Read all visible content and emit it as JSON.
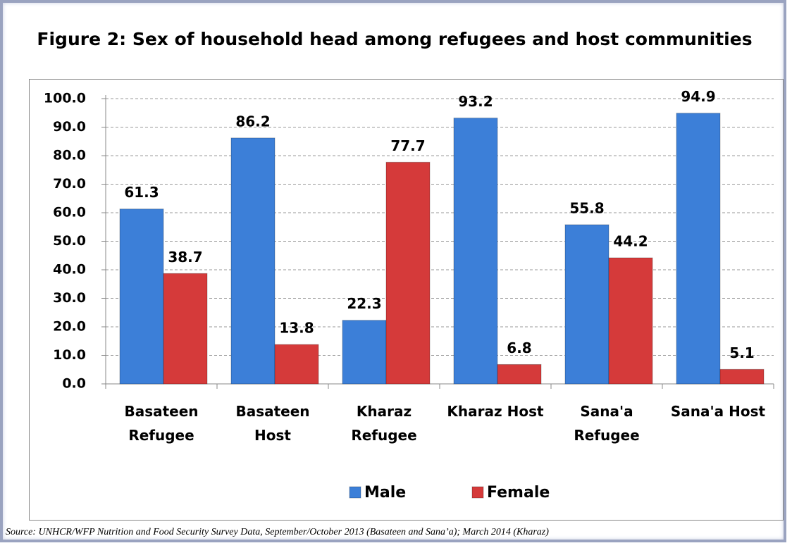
{
  "chart_data": {
    "type": "bar",
    "title": "Figure 2: Sex of household head among refugees and host communities",
    "categories": [
      "Basateen Refugee",
      "Basateen Host",
      "Kharaz Refugee",
      "Kharaz Host",
      "Sana'a Refugee",
      "Sana'a Host"
    ],
    "series": [
      {
        "name": "Male",
        "color": "#3c7fd8",
        "values": [
          61.3,
          86.2,
          22.3,
          93.2,
          55.8,
          94.9
        ]
      },
      {
        "name": "Female",
        "color": "#d53a3a",
        "values": [
          38.7,
          13.8,
          77.7,
          6.8,
          44.2,
          5.1
        ]
      }
    ],
    "ylim": [
      0,
      100
    ],
    "yticks": [
      {
        "value": 0,
        "label": "0.0"
      },
      {
        "value": 10,
        "label": "10.0"
      },
      {
        "value": 20,
        "label": "20.0"
      },
      {
        "value": 30,
        "label": "30.0"
      },
      {
        "value": 40,
        "label": "40.0"
      },
      {
        "value": 50,
        "label": "50.0"
      },
      {
        "value": 60,
        "label": "60.0"
      },
      {
        "value": 70,
        "label": "70.0"
      },
      {
        "value": 80,
        "label": "80.0"
      },
      {
        "value": 90,
        "label": "90.0"
      },
      {
        "value": 100,
        "label": "100.0"
      }
    ],
    "grid": true,
    "legend": "bottom",
    "source": "Source: UNHCR/WFP Nutrition and Food Security Survey Data, September/October 2013 (Basateen and Sana’a); March 2014 (Kharaz)"
  }
}
